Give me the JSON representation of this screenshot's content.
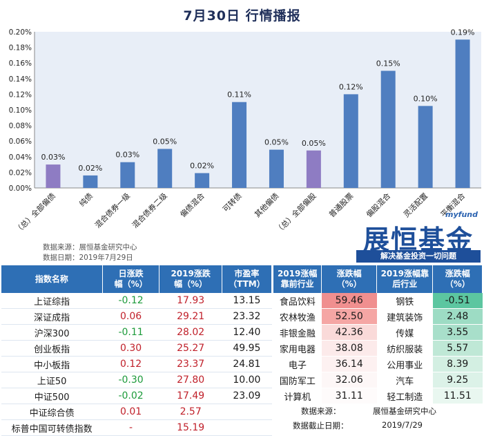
{
  "title": "7月30日  行情播报",
  "chart_data": {
    "type": "bar",
    "categories": [
      "（总）全部偏债",
      "纯债",
      "混合债券一级",
      "混合债券二级",
      "偏债混合",
      "可转债",
      "其他偏债",
      "（总）全部偏股",
      "普通股票",
      "偏股混合",
      "灵活配置",
      "平衡混合"
    ],
    "values": [
      0.03,
      0.016,
      0.033,
      0.05,
      0.019,
      0.11,
      0.049,
      0.048,
      0.12,
      0.15,
      0.105,
      0.19
    ],
    "data_labels": [
      "0.03%",
      "0.02%",
      "0.03%",
      "0.05%",
      "0.02%",
      "0.11%",
      "0.05%",
      "0.05%",
      "0.12%",
      "0.15%",
      "0.10%",
      "0.19%"
    ],
    "bar_colors": [
      "#8e7cc3",
      "#4f7ec0",
      "#4f7ec0",
      "#4f7ec0",
      "#4f7ec0",
      "#4f7ec0",
      "#4f7ec0",
      "#8e7cc3",
      "#4f7ec0",
      "#4f7ec0",
      "#4f7ec0",
      "#4f7ec0"
    ],
    "y_ticks": [
      "0.00%",
      "0.02%",
      "0.04%",
      "0.06%",
      "0.08%",
      "0.10%",
      "0.12%",
      "0.14%",
      "0.16%",
      "0.18%",
      "0.20%"
    ],
    "ylim": [
      0,
      0.2
    ],
    "plot_bg": "#e8eef7",
    "grid": false
  },
  "source_lines": [
    "数据来源：展恒基金研究中心",
    "数据日期：2019年7月29日"
  ],
  "logo": {
    "tag": "myfund",
    "name": "展恒基金",
    "slogan": "解决基金投资一切问题"
  },
  "index_table": {
    "headers": [
      "指数名称",
      "日涨跌\n幅（%）",
      "2019涨跌\n幅（%）",
      "市盈率\n（TTM）"
    ],
    "rows": [
      {
        "name": "上证综指",
        "day": "-0.12",
        "ytd": "17.93",
        "pe": "13.15",
        "dir": "neg"
      },
      {
        "name": "深证成指",
        "day": "0.06",
        "ytd": "29.21",
        "pe": "23.32",
        "dir": "pos"
      },
      {
        "name": "沪深300",
        "day": "-0.11",
        "ytd": "28.02",
        "pe": "12.40",
        "dir": "neg"
      },
      {
        "name": "创业板指",
        "day": "0.30",
        "ytd": "25.27",
        "pe": "49.95",
        "dir": "pos"
      },
      {
        "name": "中小板指",
        "day": "0.12",
        "ytd": "23.37",
        "pe": "24.81",
        "dir": "pos"
      },
      {
        "name": "上证50",
        "day": "-0.30",
        "ytd": "27.80",
        "pe": "10.00",
        "dir": "neg"
      },
      {
        "name": "中证500",
        "day": "-0.02",
        "ytd": "17.49",
        "pe": "23.09",
        "dir": "neg"
      },
      {
        "name": "中证综合债",
        "day": "0.01",
        "ytd": "2.57",
        "pe": "",
        "dir": "pos"
      },
      {
        "name": "标普中国可转债指数",
        "day": "-",
        "ytd": "15.19",
        "pe": "",
        "dir": "pos"
      }
    ]
  },
  "industry_table": {
    "headers": [
      "2019涨幅\n靠前行业",
      "涨跌幅\n（%）",
      "2019涨幅靠\n后行业",
      "涨跌幅\n（%）"
    ],
    "rows": [
      {
        "top": "食品饮料",
        "top_val": "59.46",
        "top_color": "#f08f8f",
        "bottom": "钢铁",
        "bottom_val": "-0.51",
        "bottom_color": "#5cc6a0"
      },
      {
        "top": "农林牧渔",
        "top_val": "52.50",
        "top_color": "#f5a6a4",
        "bottom": "建筑装饰",
        "bottom_val": "2.48",
        "bottom_color": "#9ddcc4"
      },
      {
        "top": "非银金融",
        "top_val": "42.36",
        "top_color": "#fadad9",
        "bottom": "传媒",
        "bottom_val": "3.55",
        "bottom_color": "#a8dfca"
      },
      {
        "top": "家用电器",
        "top_val": "38.08",
        "top_color": "#fceaea",
        "bottom": "纺织服装",
        "bottom_val": "5.57",
        "bottom_color": "#bfe8d6"
      },
      {
        "top": "电子",
        "top_val": "36.14",
        "top_color": "#fdf1f1",
        "bottom": "公用事业",
        "bottom_val": "8.39",
        "bottom_color": "#d3efe2"
      },
      {
        "top": "国防军工",
        "top_val": "32.06",
        "top_color": "#fdf7f7",
        "bottom": "汽车",
        "bottom_val": "9.25",
        "bottom_color": "#dcf2e8"
      },
      {
        "top": "计算机",
        "top_val": "31.11",
        "top_color": "#fefbfb",
        "bottom": "轻工制造",
        "bottom_val": "11.51",
        "bottom_color": "#e9f7f0"
      }
    ],
    "foot": [
      {
        "label": "数据来源：",
        "value": "展恒基金研究中心"
      },
      {
        "label": "数据截止日期：",
        "value": "2019/7/29"
      }
    ]
  }
}
